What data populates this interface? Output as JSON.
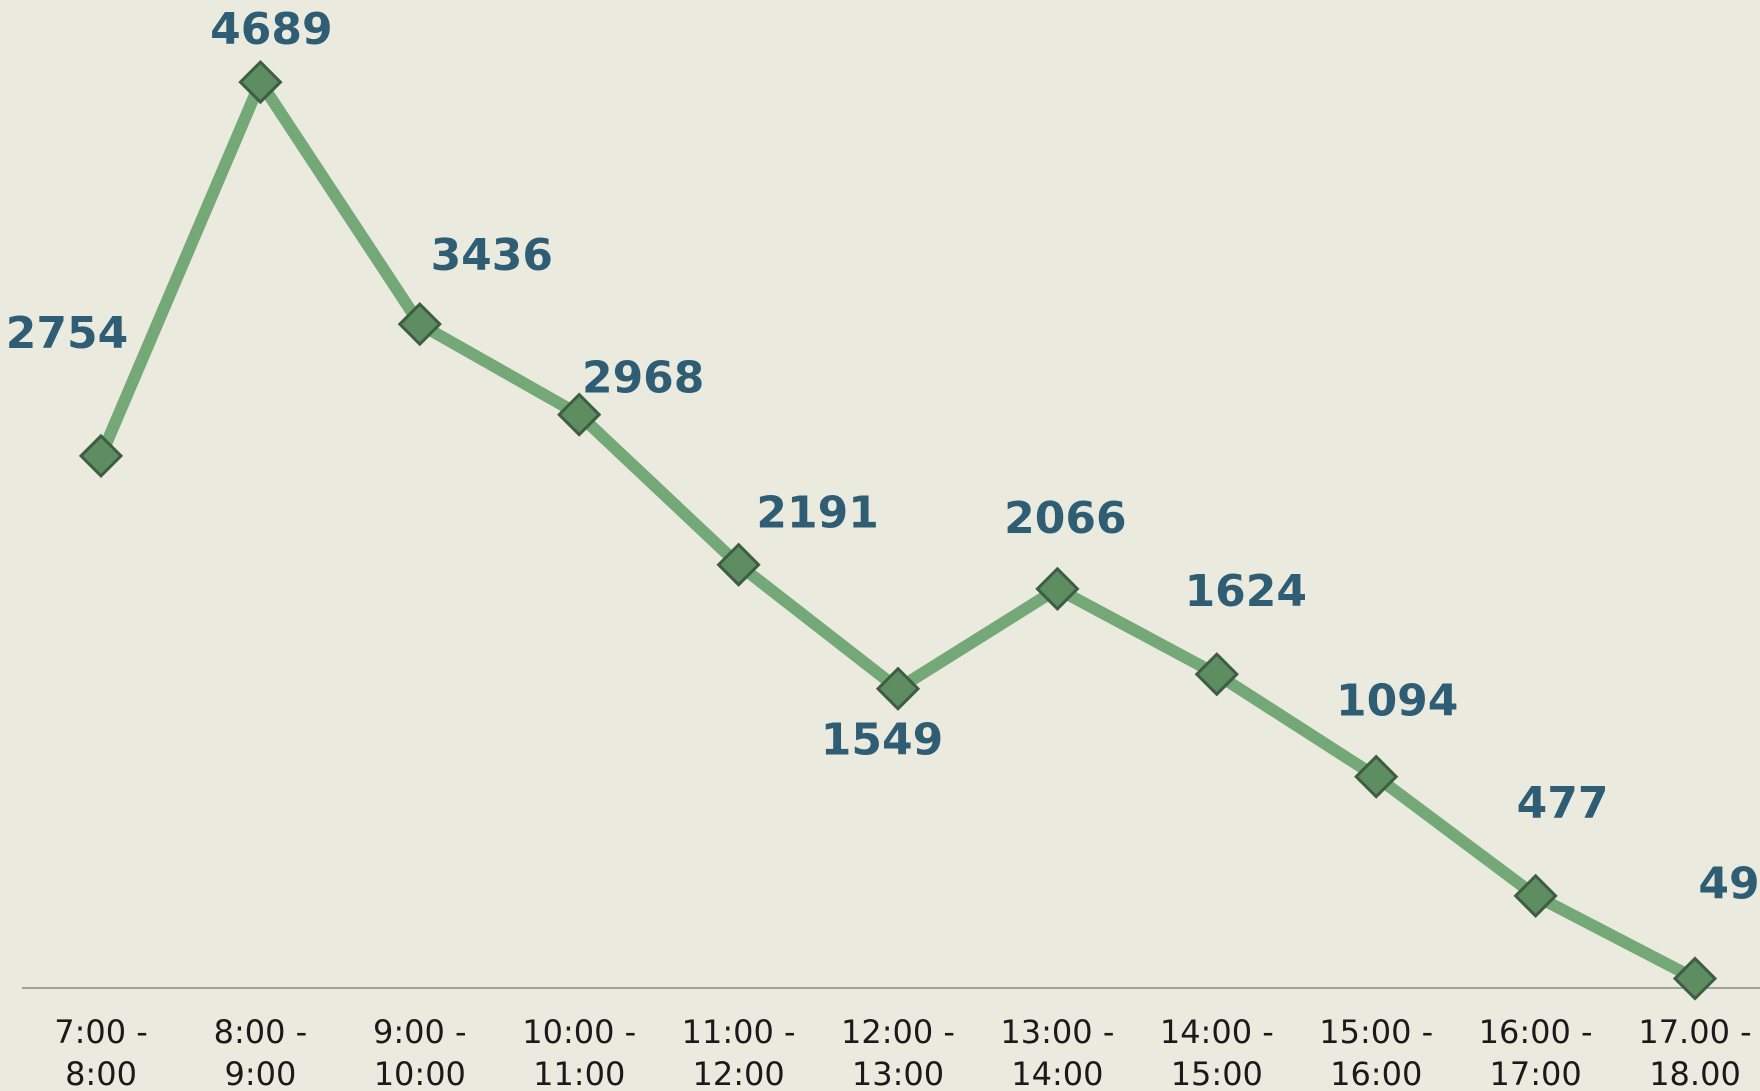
{
  "chart_data": {
    "type": "line",
    "categories": [
      [
        "7:00 -",
        "8:00"
      ],
      [
        "8:00 -",
        "9:00"
      ],
      [
        "9:00 -",
        "10:00"
      ],
      [
        "10:00 -",
        "11:00"
      ],
      [
        "11:00 -",
        "12:00"
      ],
      [
        "12:00 -",
        "13:00"
      ],
      [
        "13:00 -",
        "14:00"
      ],
      [
        "14:00 -",
        "15:00"
      ],
      [
        "15:00 -",
        "16:00"
      ],
      [
        "16:00 -",
        "17:00"
      ],
      [
        "17.00 -",
        "18.00"
      ]
    ],
    "values": [
      2754,
      4689,
      3436,
      2968,
      2191,
      1549,
      2066,
      1624,
      1094,
      477,
      49
    ],
    "color": "#74a877",
    "marker_color": "#5e8d62",
    "label_color": "#2f5e74",
    "ylim": [
      0,
      5000
    ]
  }
}
